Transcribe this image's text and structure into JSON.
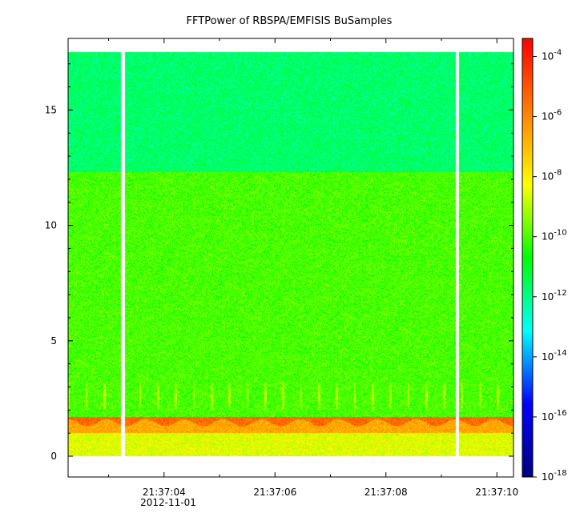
{
  "chart_data": {
    "type": "heatmap",
    "title": "FFTPower of RBSPA/EMFISIS  BuSamples",
    "xlabel": "",
    "ylabel": "",
    "x": {
      "tick_labels": [
        "21:37:04",
        "21:37:06",
        "21:37:08",
        "21:37:10"
      ],
      "sub_label": "2012-11-01",
      "tick_seconds": [
        4,
        6,
        8,
        10
      ],
      "minor_tick_seconds": [
        3,
        5,
        7,
        9
      ],
      "range_seconds": [
        2.27,
        10.3
      ]
    },
    "y": {
      "ticks": [
        0,
        5,
        10,
        15
      ],
      "range": [
        -0.9,
        18.1
      ],
      "data_top": 17.5
    },
    "colorbar": {
      "scale": "log",
      "exponent_range": [
        -18,
        -3.4
      ],
      "tick_exponents": [
        -4,
        -6,
        -8,
        -10,
        -12,
        -14,
        -16,
        -18
      ],
      "tick_base": "10",
      "colors": [
        "#000080",
        "#0000ff",
        "#00ffff",
        "#00ff00",
        "#ffff00",
        "#ff8000",
        "#ff0000"
      ]
    },
    "gaps_seconds": [
      [
        3.23,
        3.29
      ],
      [
        9.26,
        9.32
      ]
    ],
    "bands": [
      {
        "name": "background",
        "freq_range": [
          1.7,
          12.3
        ],
        "log_power": -10
      },
      {
        "name": "upper",
        "freq_range": [
          12.3,
          17.5
        ],
        "log_power": -11.7
      },
      {
        "name": "low",
        "freq_range": [
          0,
          1.0
        ],
        "log_power": -8.5
      },
      {
        "name": "intense",
        "freq_range": [
          1.0,
          1.7
        ],
        "log_power": -6
      }
    ]
  }
}
